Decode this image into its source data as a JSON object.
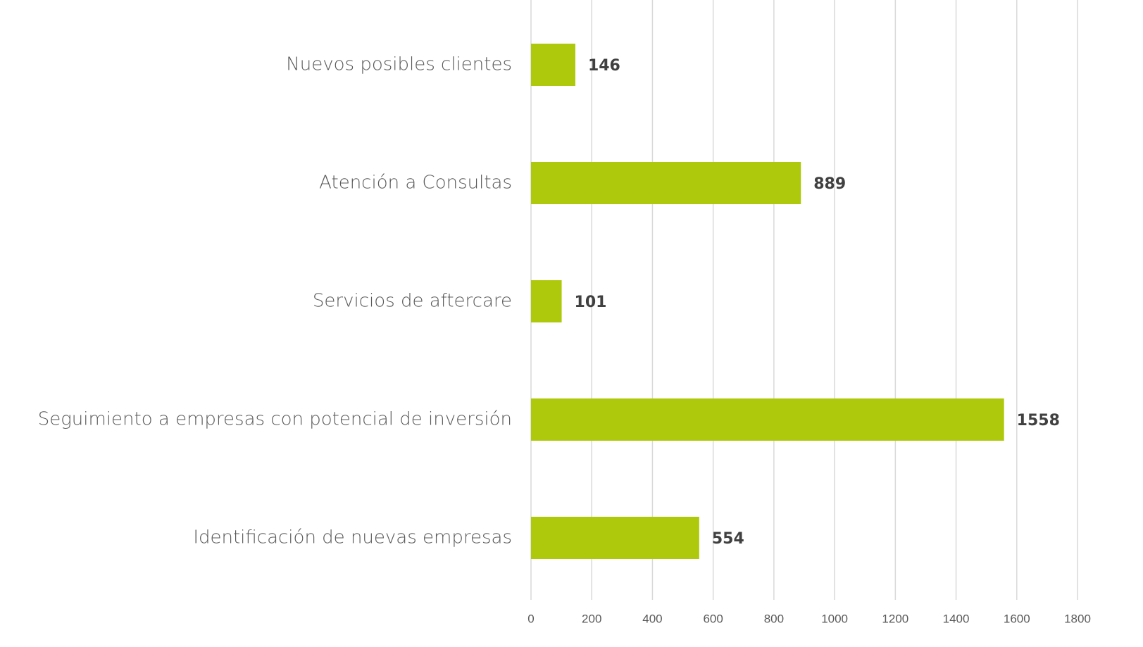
{
  "chart_data": {
    "type": "bar",
    "orientation": "horizontal",
    "categories": [
      "Nuevos posibles clientes",
      "Atención a Consultas",
      "Servicios de aftercare",
      "Seguimiento a empresas con potencial de inversión",
      "Identificación de nuevas empresas"
    ],
    "values": [
      146,
      889,
      101,
      1558,
      554
    ],
    "color": "#aec90b",
    "xlim": [
      0,
      1800
    ],
    "xticks": [
      0,
      200,
      400,
      600,
      800,
      1000,
      1200,
      1400,
      1600,
      1800
    ],
    "grid": true
  }
}
